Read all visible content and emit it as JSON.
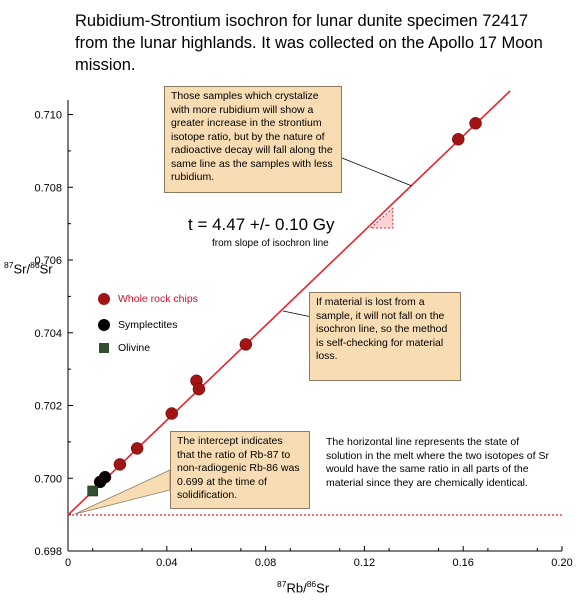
{
  "title": "Rubidium-Strontium isochron for lunar dunite specimen 72417 from the lunar highlands. It was collected on the Apollo 17 Moon mission.",
  "colors": {
    "isochron": "#e8232b",
    "initial_ratio_line": "#e8232b",
    "whole_rock": "#a11414",
    "symplectite": "#000000",
    "olivine": "#2f4f2f",
    "callout_fill": "#f7dcb4",
    "legend_text_whole_rock": "#c8102e"
  },
  "chart_data": {
    "type": "scatter",
    "xlabel": {
      "mass1": "87",
      "el1": "Rb/",
      "mass2": "86",
      "el2": "Sr"
    },
    "ylabel": {
      "mass1": "87",
      "el1": "Sr/",
      "mass2": "86",
      "el2": "Sr"
    },
    "xlim": [
      0,
      0.2
    ],
    "ylim": [
      0.698,
      0.7104
    ],
    "xticks": [
      "0",
      "0.04",
      "0.08",
      "0.12",
      "0.16",
      "0.20"
    ],
    "yticks": [
      "0.698",
      "0.700",
      "0.702",
      "0.704",
      "0.706",
      "0.708",
      "0.710"
    ],
    "series": [
      {
        "name": "Whole rock chips",
        "marker": "circle",
        "color": "#a11414",
        "x": [
          0.021,
          0.028,
          0.042,
          0.052,
          0.053,
          0.072,
          0.158,
          0.165
        ],
        "y": [
          0.70038,
          0.70082,
          0.70178,
          0.70268,
          0.70245,
          0.70368,
          0.70932,
          0.70976
        ]
      },
      {
        "name": "Symplectites",
        "marker": "circle",
        "color": "#000000",
        "x": [
          0.013,
          0.015
        ],
        "y": [
          0.6999,
          0.70003
        ]
      },
      {
        "name": "Olivine",
        "marker": "square",
        "color": "#2f4f2f",
        "x": [
          0.01
        ],
        "y": [
          0.69965
        ]
      }
    ],
    "isochron": {
      "x": [
        0,
        0.179
      ],
      "y": [
        0.69899,
        0.71065
      ]
    },
    "initial_ratio": 0.69899,
    "slope_triangle": {
      "x": [
        0.1225,
        0.1315
      ],
      "y": [
        0.70688,
        0.70742
      ]
    }
  },
  "annotations": {
    "age": "t = 4.47 +/- 0.10 Gy",
    "age_sub": "from slope of isochron line",
    "callout_top": "Those samples which crystalize with more rubidium will show a greater increase in the strontium isotope ratio, but by the nature of radioactive decay will fall along the same line as the samples with less rubidium.",
    "callout_mid": "If material is lost from a sample, it will not fall on the isochron line, so the method is self-checking for material loss.",
    "callout_low": "The intercept indicates that the ratio of Rb-87 to non-radiogenic Rb-86 was 0.699 at the time of solidification.",
    "note_horizontal": "The horizontal line represents the state of solution in the melt where the two isotopes of Sr would have the same ratio in all parts of the material since they are chemically identical."
  }
}
